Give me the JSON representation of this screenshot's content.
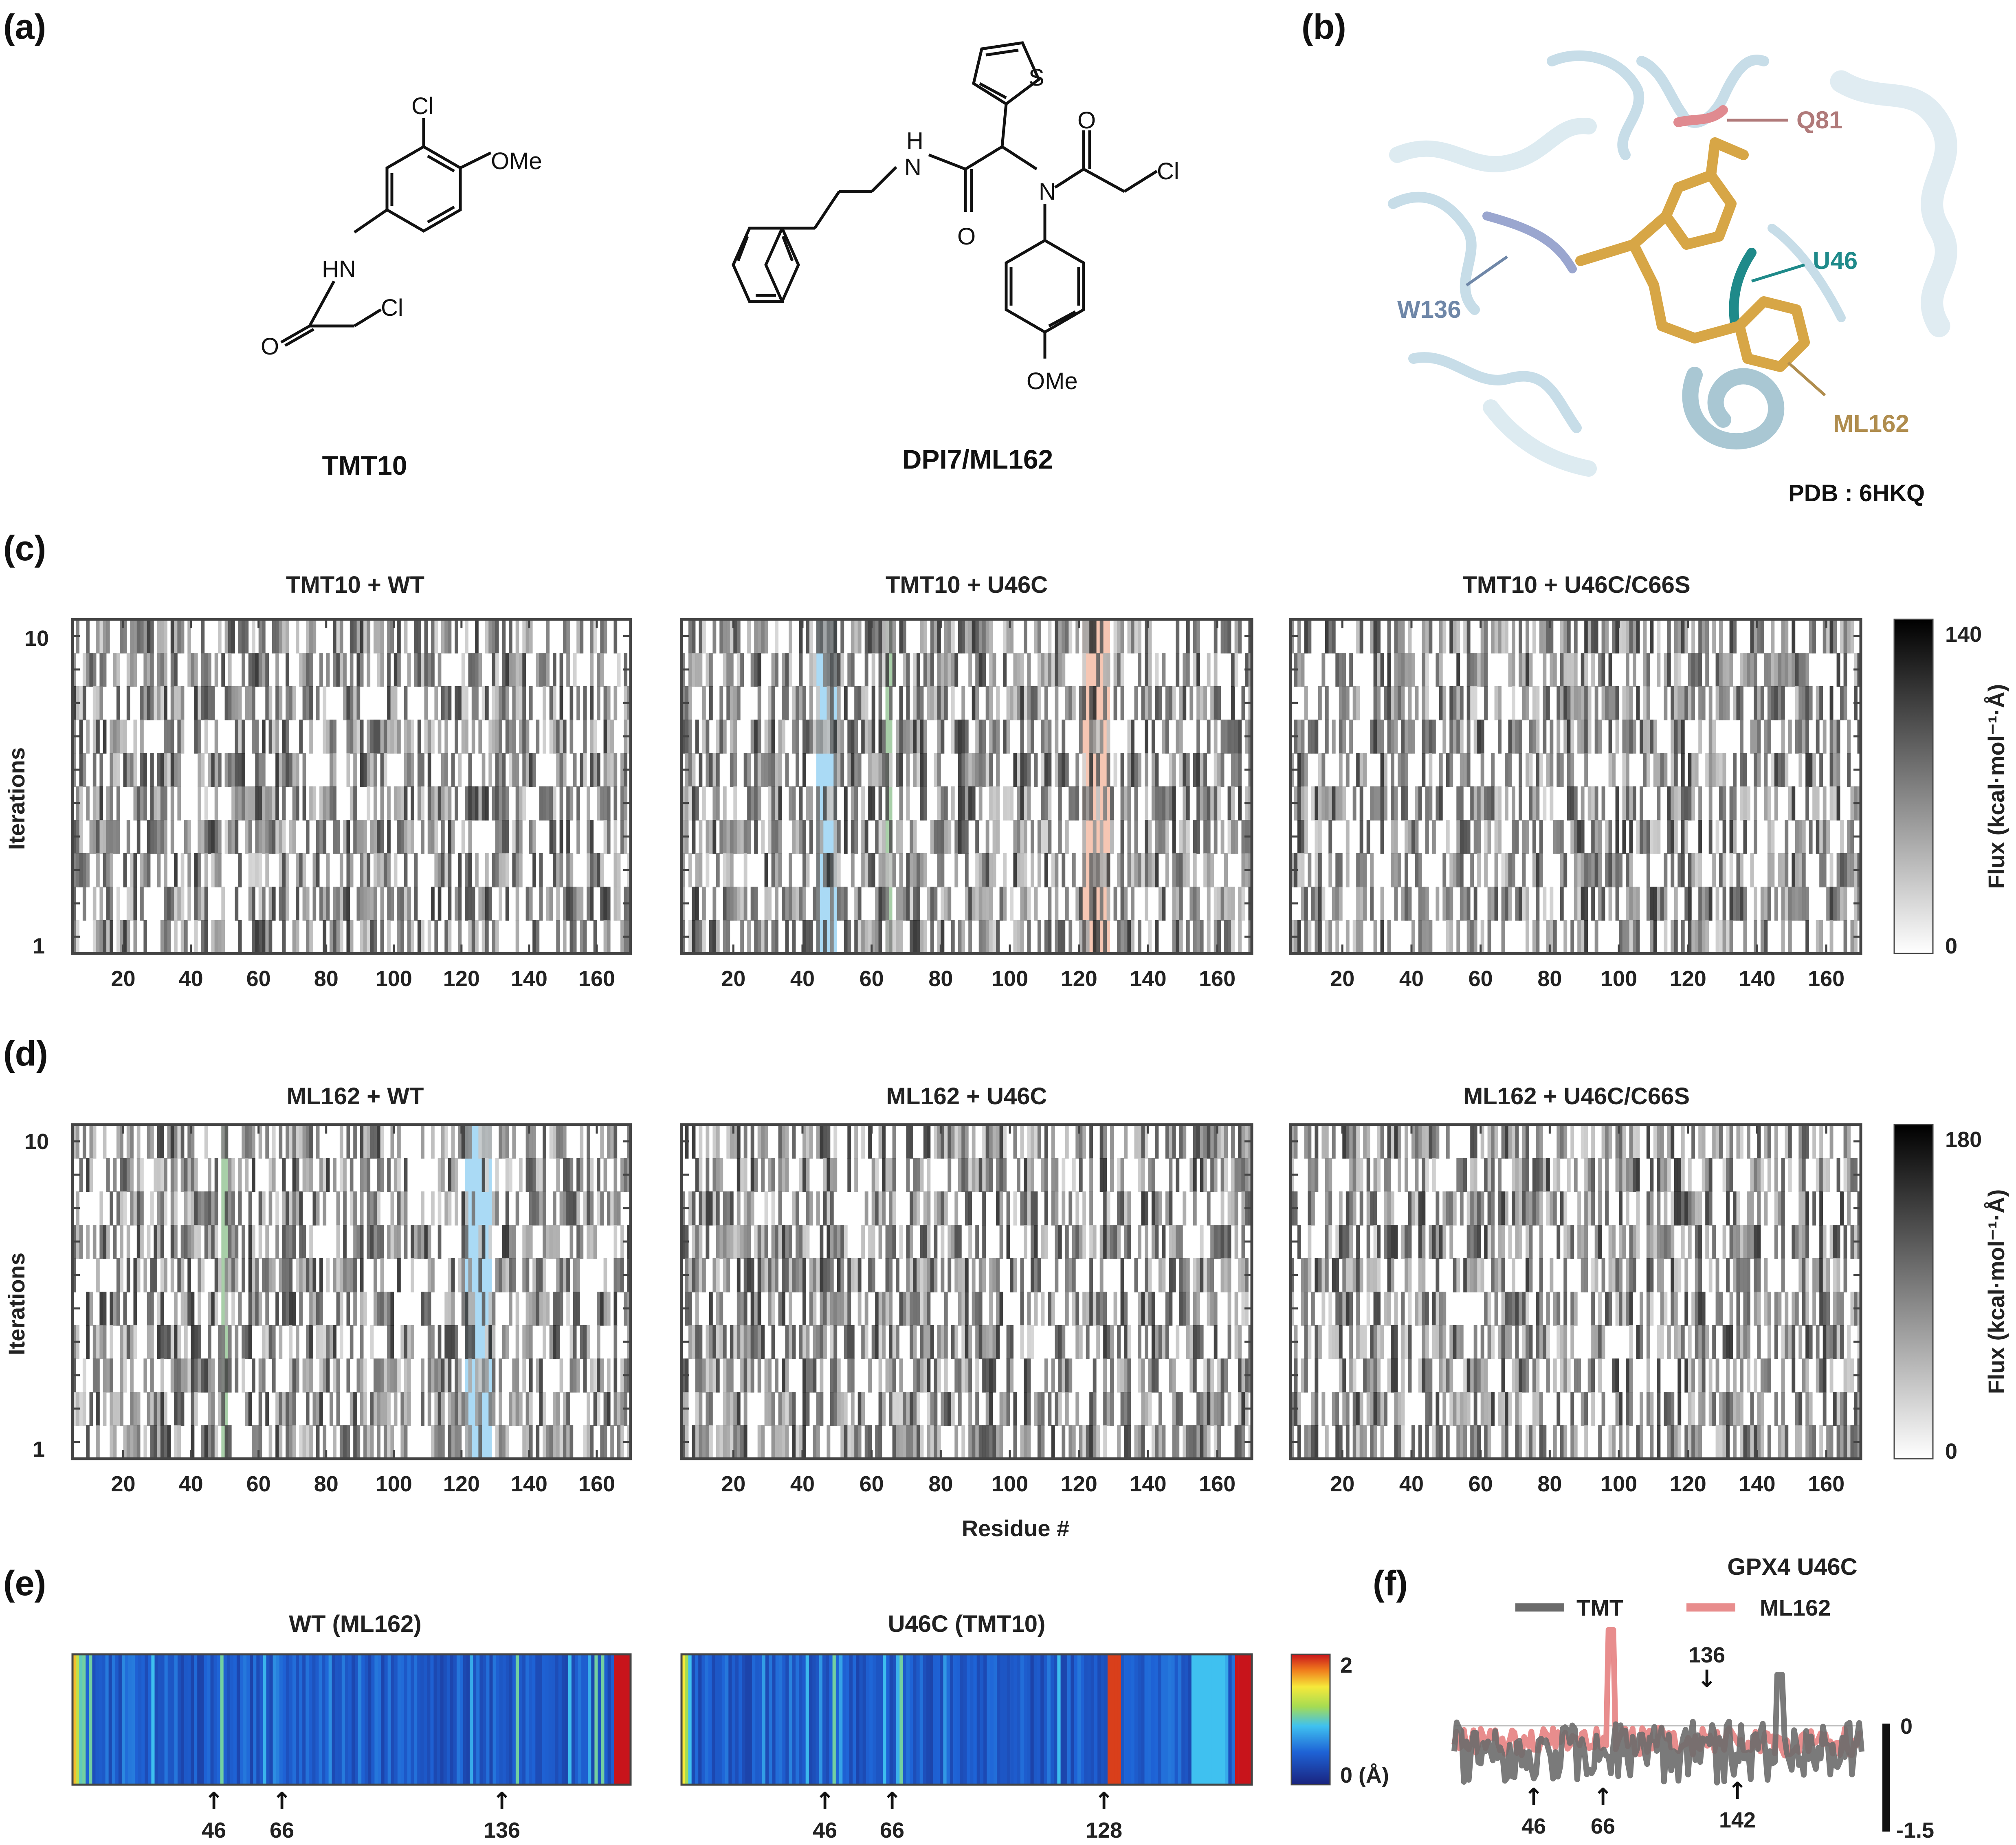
{
  "panel_labels": {
    "a": "(a)",
    "b": "(b)",
    "c": "(c)",
    "d": "(d)",
    "e": "(e)",
    "f": "(f)"
  },
  "molecules": {
    "tmt10": {
      "name": "TMT10",
      "atoms": {
        "cl1": "Cl",
        "ome": "OMe",
        "hn": "HN",
        "o": "O",
        "cl2": "Cl"
      }
    },
    "ml162": {
      "name": "DPI7/ML162",
      "atoms": {
        "s": "S",
        "h": "H",
        "n1": "N",
        "n2": "N",
        "o1": "O",
        "o2": "O",
        "cl": "Cl",
        "ome": "OMe"
      }
    }
  },
  "structure": {
    "labels": {
      "q81": "Q81",
      "u46": "U46",
      "w136": "W136",
      "ml162": "ML162"
    },
    "pdb": "PDB : 6HKQ",
    "colors": {
      "q81": "#b07a7a",
      "u46": "#1f8a8a",
      "w136": "#6f87a8",
      "ml162": "#b08d4e",
      "ligand": "#d7a646",
      "protein": "#bcd7e3"
    }
  },
  "heatmaps": {
    "x_ticks": [
      "20",
      "40",
      "60",
      "80",
      "100",
      "120",
      "140",
      "160"
    ],
    "y_ticks": [
      "10",
      "1"
    ],
    "ylabel": "Iterations",
    "xlabel": "Residue #",
    "colorbar_label": "Flux (kcal·mol⁻¹·Å)",
    "c_titles": [
      "TMT10 + WT",
      "TMT10 + U46C",
      "TMT10 + U46C/C66S"
    ],
    "d_titles": [
      "ML162 + WT",
      "ML162 + U46C",
      "ML162 + U46C/C66S"
    ],
    "c_colorbar": {
      "max": "140",
      "min": "0"
    },
    "d_colorbar": {
      "max": "180",
      "min": "0"
    }
  },
  "e_panel": {
    "titles": [
      "WT (ML162)",
      "U46C (TMT10)"
    ],
    "left_markers": [
      "46",
      "66",
      "136"
    ],
    "right_markers": [
      "46",
      "66",
      "128"
    ],
    "colorbar": {
      "max": "2",
      "min": "0 (Å)"
    }
  },
  "f_panel": {
    "title": "GPX4 U46C",
    "legend": [
      "TMT",
      "ML162"
    ],
    "markers": [
      "46",
      "66",
      "142",
      "136"
    ],
    "scale": {
      "top": "0",
      "bottom": "-1.5"
    }
  },
  "chart_data": [
    {
      "type": "heatmap",
      "title": "TMT10 + WT",
      "xlabel": "",
      "ylabel": "Iterations",
      "xlim": [
        5,
        170
      ],
      "ylim": [
        1,
        10
      ],
      "colorbar": [
        0,
        140
      ],
      "highlights": []
    },
    {
      "type": "heatmap",
      "title": "TMT10 + U46C",
      "xlabel": "",
      "ylabel": "Iterations",
      "xlim": [
        5,
        170
      ],
      "ylim": [
        1,
        10
      ],
      "colorbar": [
        0,
        140
      ],
      "highlights": [
        {
          "from": 44,
          "to": 50,
          "color": "#8ecdf2"
        },
        {
          "from": 64,
          "to": 66,
          "color": "#8bbf8b"
        },
        {
          "from": 121,
          "to": 129,
          "color": "#f3b39a"
        }
      ]
    },
    {
      "type": "heatmap",
      "title": "TMT10 + U46C/C66S",
      "xlabel": "",
      "ylabel": "",
      "xlim": [
        5,
        170
      ],
      "ylim": [
        1,
        10
      ],
      "colorbar": [
        0,
        140
      ],
      "highlights": []
    },
    {
      "type": "heatmap",
      "title": "ML162 + WT",
      "xlabel": "Residue #",
      "ylabel": "Iterations",
      "xlim": [
        5,
        170
      ],
      "ylim": [
        1,
        10
      ],
      "colorbar": [
        0,
        180
      ],
      "highlights": [
        {
          "from": 49,
          "to": 51,
          "color": "#8bbf8b"
        },
        {
          "from": 121,
          "to": 129,
          "color": "#8ecdf2"
        }
      ]
    },
    {
      "type": "heatmap",
      "title": "ML162 + U46C",
      "xlabel": "Residue #",
      "ylabel": "",
      "xlim": [
        5,
        170
      ],
      "ylim": [
        1,
        10
      ],
      "colorbar": [
        0,
        180
      ],
      "highlights": []
    },
    {
      "type": "heatmap",
      "title": "ML162 + U46C/C66S",
      "xlabel": "Residue #",
      "ylabel": "",
      "xlim": [
        5,
        170
      ],
      "ylim": [
        1,
        10
      ],
      "colorbar": [
        0,
        180
      ],
      "highlights": []
    },
    {
      "type": "heatmap",
      "title": "WT (ML162)",
      "ylabel": "",
      "colorbar": [
        0,
        2
      ],
      "bright_residues": [
        4,
        6,
        46,
        136,
        160,
        162
      ],
      "edge_values": {
        "start": 1.6,
        "end": 2.0
      }
    },
    {
      "type": "heatmap",
      "title": "U46C (TMT10)",
      "ylabel": "",
      "colorbar": [
        0,
        2
      ],
      "bright_residues": [
        46,
        66,
        128,
        130
      ],
      "edge_values": {
        "start": 1.5,
        "end": 2.0
      }
    },
    {
      "type": "line",
      "title": "GPX4 U46C",
      "series": [
        {
          "name": "TMT"
        },
        {
          "name": "ML162"
        }
      ],
      "peaks": {
        "TMT": [
          136
        ],
        "ML162": [
          66
        ]
      },
      "ylim": [
        -1.5,
        0
      ]
    }
  ]
}
